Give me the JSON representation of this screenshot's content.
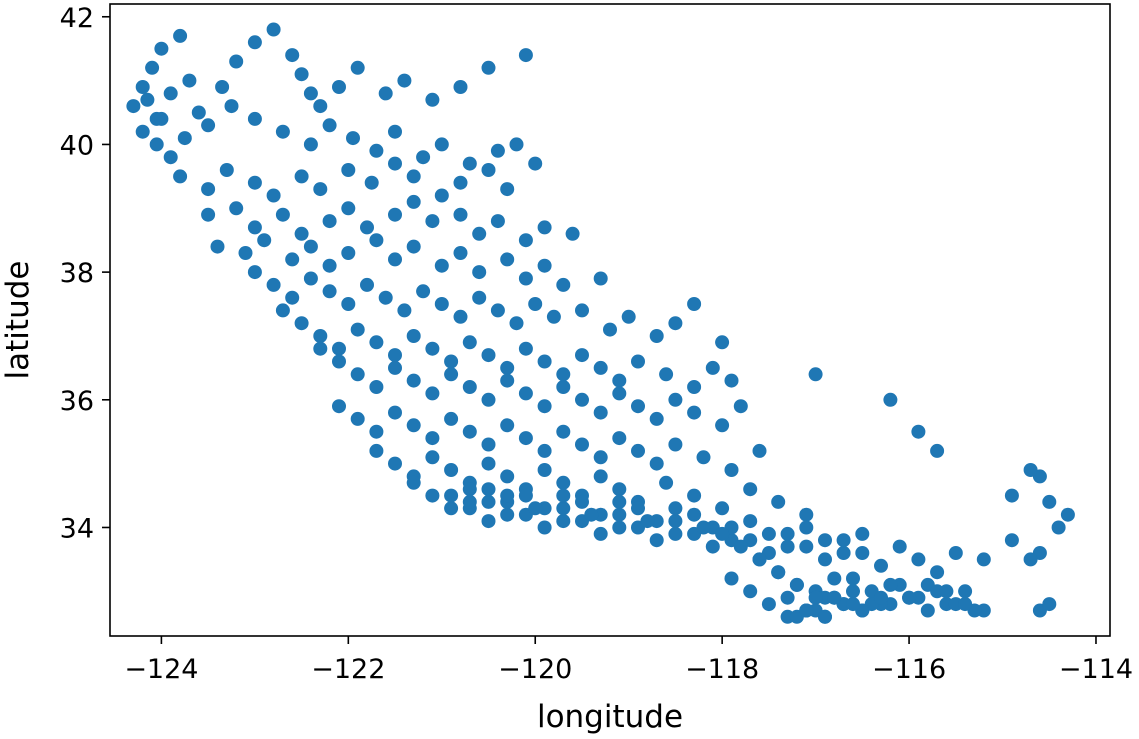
{
  "chart_data": {
    "type": "scatter",
    "xlabel": "longitude",
    "ylabel": "latitude",
    "xlim": [
      -124.55,
      -113.85
    ],
    "ylim": [
      32.3,
      42.2
    ],
    "xticks": [
      -124,
      -122,
      -120,
      -118,
      -116,
      -114
    ],
    "yticks": [
      34,
      36,
      38,
      40,
      42
    ],
    "xtick_labels": [
      "−124",
      "−122",
      "−120",
      "−118",
      "−116",
      "−114"
    ],
    "ytick_labels": [
      "34",
      "36",
      "38",
      "40",
      "42"
    ],
    "grid": false,
    "point_color": "#1f77b4",
    "series": [
      {
        "x": [
          -124.3,
          -124.2,
          -124.15,
          -124.05,
          -123.9,
          -124.1,
          -124.0,
          -123.8,
          -123.7,
          -123.6,
          -123.35,
          -123.2,
          -123.0,
          -122.8,
          -122.6,
          -122.5,
          -122.4,
          -122.3,
          -122.1,
          -121.9,
          -121.6,
          -121.4,
          -121.1,
          -120.8,
          -120.5,
          -120.1,
          -124.2,
          -124.05,
          -123.9,
          -124.0,
          -123.75,
          -123.5,
          -123.25,
          -123.0,
          -122.7,
          -122.4,
          -122.2,
          -121.95,
          -121.7,
          -121.5,
          -121.2,
          -121.0,
          -120.7,
          -120.4,
          -120.2,
          -123.8,
          -123.5,
          -123.3,
          -123.0,
          -122.8,
          -122.5,
          -122.3,
          -122.0,
          -121.75,
          -121.5,
          -121.3,
          -121.0,
          -120.8,
          -120.5,
          -120.3,
          -120.0,
          -123.5,
          -123.2,
          -123.0,
          -122.7,
          -122.5,
          -122.2,
          -122.0,
          -121.8,
          -121.5,
          -121.3,
          -121.1,
          -120.8,
          -120.6,
          -120.4,
          -120.1,
          -119.9,
          -119.6,
          -123.4,
          -123.1,
          -122.9,
          -122.6,
          -122.4,
          -122.2,
          -122.0,
          -121.7,
          -121.5,
          -121.3,
          -121.0,
          -120.8,
          -120.6,
          -120.3,
          -120.1,
          -119.9,
          -119.7,
          -119.3,
          -123.0,
          -122.8,
          -122.6,
          -122.4,
          -122.2,
          -122.0,
          -121.8,
          -121.6,
          -121.4,
          -121.2,
          -121.0,
          -120.8,
          -120.6,
          -120.4,
          -120.2,
          -120.0,
          -119.8,
          -119.5,
          -119.2,
          -119.0,
          -118.7,
          -118.5,
          -118.3,
          -118.0,
          -122.7,
          -122.5,
          -122.3,
          -122.1,
          -121.9,
          -121.7,
          -121.5,
          -121.3,
          -121.1,
          -120.9,
          -120.7,
          -120.5,
          -120.3,
          -120.1,
          -119.9,
          -119.7,
          -119.5,
          -119.3,
          -119.1,
          -118.9,
          -118.6,
          -118.3,
          -118.1,
          -117.9,
          -122.3,
          -122.1,
          -121.9,
          -121.7,
          -121.5,
          -121.3,
          -121.1,
          -120.9,
          -120.7,
          -120.5,
          -120.3,
          -120.1,
          -119.9,
          -119.7,
          -119.5,
          -119.3,
          -119.1,
          -118.9,
          -118.7,
          -118.5,
          -118.3,
          -118.0,
          -117.8,
          -122.1,
          -121.9,
          -121.7,
          -121.5,
          -121.3,
          -121.1,
          -120.9,
          -120.7,
          -120.5,
          -120.3,
          -120.1,
          -119.9,
          -119.7,
          -119.5,
          -119.3,
          -119.1,
          -118.9,
          -118.7,
          -118.5,
          -118.2,
          -117.9,
          -117.6,
          -121.7,
          -121.5,
          -121.3,
          -121.1,
          -120.9,
          -120.7,
          -120.5,
          -120.3,
          -120.1,
          -119.9,
          -119.7,
          -119.5,
          -119.3,
          -119.1,
          -118.9,
          -118.6,
          -118.3,
          -118.0,
          -117.7,
          -117.4,
          -117.1,
          -121.3,
          -121.1,
          -120.9,
          -120.7,
          -120.5,
          -120.3,
          -120.1,
          -119.9,
          -119.7,
          -119.5,
          -119.3,
          -119.1,
          -118.9,
          -118.7,
          -118.5,
          -118.3,
          -118.1,
          -117.9,
          -117.7,
          -117.5,
          -117.3,
          -117.1,
          -116.9,
          -116.7,
          -116.5,
          -120.9,
          -120.7,
          -120.5,
          -120.3,
          -120.1,
          -119.9,
          -119.7,
          -119.5,
          -119.3,
          -119.1,
          -118.9,
          -118.7,
          -118.5,
          -118.3,
          -118.1,
          -117.9,
          -117.7,
          -117.5,
          -117.3,
          -117.1,
          -116.9,
          -116.7,
          -116.5,
          -116.3,
          -116.1,
          -115.9,
          -115.7,
          -115.5,
          -120.7,
          -120.5,
          -120.3,
          -120.0,
          -119.7,
          -119.4,
          -119.1,
          -118.8,
          -118.5,
          -118.2,
          -118.0,
          -117.8,
          -117.6,
          -117.4,
          -117.2,
          -117.0,
          -116.8,
          -116.6,
          -116.4,
          -116.2,
          -116.0,
          -115.8,
          -115.6,
          -115.4,
          -115.2,
          -117.9,
          -117.7,
          -117.5,
          -117.3,
          -117.1,
          -116.9,
          -116.7,
          -116.5,
          -116.3,
          -116.1,
          -115.9,
          -115.7,
          -115.5,
          -115.3,
          -117.6,
          -117.4,
          -117.2,
          -117.0,
          -116.8,
          -116.6,
          -116.4,
          -116.2,
          -116.0,
          -115.8,
          -115.6,
          -115.4,
          -117.3,
          -117.1,
          -116.9,
          -116.7,
          -116.5,
          -116.3,
          -117.2,
          -117.0,
          -116.8,
          -116.6,
          -117.1,
          -116.9,
          -114.6,
          -114.7,
          -114.5,
          -114.4,
          -114.3,
          -114.6,
          -114.7,
          -114.9,
          -114.9,
          -114.6,
          -114.5,
          -115.2,
          -117.0,
          -116.2,
          -115.9,
          -115.7
        ],
        "y": [
          40.6,
          40.9,
          40.7,
          40.4,
          40.8,
          41.2,
          41.5,
          41.7,
          41.0,
          40.5,
          40.9,
          41.3,
          41.6,
          41.8,
          41.4,
          41.1,
          40.8,
          40.6,
          40.9,
          41.2,
          40.8,
          41.0,
          40.7,
          40.9,
          41.2,
          41.4,
          40.2,
          40.0,
          39.8,
          40.4,
          40.1,
          40.3,
          40.6,
          40.4,
          40.2,
          40.0,
          40.3,
          40.1,
          39.9,
          40.2,
          39.8,
          40.0,
          39.7,
          39.9,
          40.0,
          39.5,
          39.3,
          39.6,
          39.4,
          39.2,
          39.5,
          39.3,
          39.6,
          39.4,
          39.7,
          39.5,
          39.2,
          39.4,
          39.6,
          39.3,
          39.7,
          38.9,
          39.0,
          38.7,
          38.9,
          38.6,
          38.8,
          39.0,
          38.7,
          38.9,
          39.1,
          38.8,
          38.9,
          38.6,
          38.8,
          38.5,
          38.7,
          38.6,
          38.4,
          38.3,
          38.5,
          38.2,
          38.4,
          38.1,
          38.3,
          38.5,
          38.2,
          38.4,
          38.1,
          38.3,
          38.0,
          38.2,
          37.9,
          38.1,
          37.8,
          37.9,
          38.0,
          37.8,
          37.6,
          37.9,
          37.7,
          37.5,
          37.8,
          37.6,
          37.4,
          37.7,
          37.5,
          37.3,
          37.6,
          37.4,
          37.2,
          37.5,
          37.3,
          37.4,
          37.1,
          37.3,
          37.0,
          37.2,
          37.5,
          36.9,
          37.4,
          37.2,
          37.0,
          36.8,
          37.1,
          36.9,
          36.7,
          37.0,
          36.8,
          36.6,
          36.9,
          36.7,
          36.5,
          36.8,
          36.6,
          36.4,
          36.7,
          36.5,
          36.3,
          36.6,
          36.4,
          36.2,
          36.5,
          36.3,
          36.8,
          36.6,
          36.4,
          36.2,
          36.5,
          36.3,
          36.1,
          36.4,
          36.2,
          36.0,
          36.3,
          36.1,
          35.9,
          36.2,
          36.0,
          35.8,
          36.1,
          35.9,
          35.7,
          36.0,
          35.8,
          35.6,
          35.9,
          35.9,
          35.7,
          35.5,
          35.8,
          35.6,
          35.4,
          35.7,
          35.5,
          35.3,
          35.6,
          35.4,
          35.2,
          35.5,
          35.3,
          35.1,
          35.4,
          35.2,
          35.0,
          35.3,
          35.1,
          34.9,
          35.2,
          35.2,
          35.0,
          34.8,
          35.1,
          34.9,
          34.7,
          35.0,
          34.8,
          34.6,
          34.9,
          34.7,
          34.5,
          34.8,
          34.6,
          34.4,
          34.7,
          34.5,
          34.3,
          34.6,
          34.4,
          34.2,
          34.7,
          34.5,
          34.3,
          34.6,
          34.4,
          34.2,
          34.5,
          34.3,
          34.1,
          34.4,
          34.2,
          34.0,
          34.3,
          34.1,
          33.9,
          34.2,
          34.0,
          33.8,
          34.1,
          33.9,
          33.7,
          34.0,
          33.8,
          33.6,
          33.9,
          34.5,
          34.3,
          34.1,
          34.4,
          34.2,
          34.0,
          34.3,
          34.1,
          33.9,
          34.2,
          34.0,
          33.8,
          34.1,
          33.9,
          33.7,
          34.0,
          33.8,
          33.6,
          33.9,
          33.7,
          33.5,
          33.8,
          33.6,
          33.4,
          33.7,
          33.5,
          33.3,
          33.6,
          34.4,
          34.6,
          34.5,
          34.3,
          34.5,
          34.2,
          34.4,
          34.1,
          34.3,
          34.0,
          33.9,
          33.7,
          33.5,
          33.3,
          33.1,
          33.0,
          32.9,
          33.2,
          33.0,
          32.8,
          32.9,
          33.1,
          32.8,
          33.0,
          32.7,
          33.2,
          33.0,
          32.8,
          32.6,
          32.7,
          32.9,
          32.8,
          32.7,
          32.8,
          33.1,
          32.9,
          33.0,
          32.8,
          32.7,
          33.5,
          33.3,
          33.1,
          32.9,
          33.2,
          33.0,
          32.8,
          33.1,
          32.9,
          32.7,
          33.0,
          32.8,
          32.9,
          32.7,
          32.6,
          32.8,
          32.7,
          32.9,
          32.6,
          32.7,
          32.9,
          32.8,
          32.7,
          32.6,
          34.8,
          34.9,
          34.4,
          34.0,
          34.2,
          33.6,
          33.5,
          33.8,
          34.5,
          32.7,
          32.8,
          33.5,
          36.4,
          36.0,
          35.5,
          35.2
        ]
      }
    ]
  }
}
